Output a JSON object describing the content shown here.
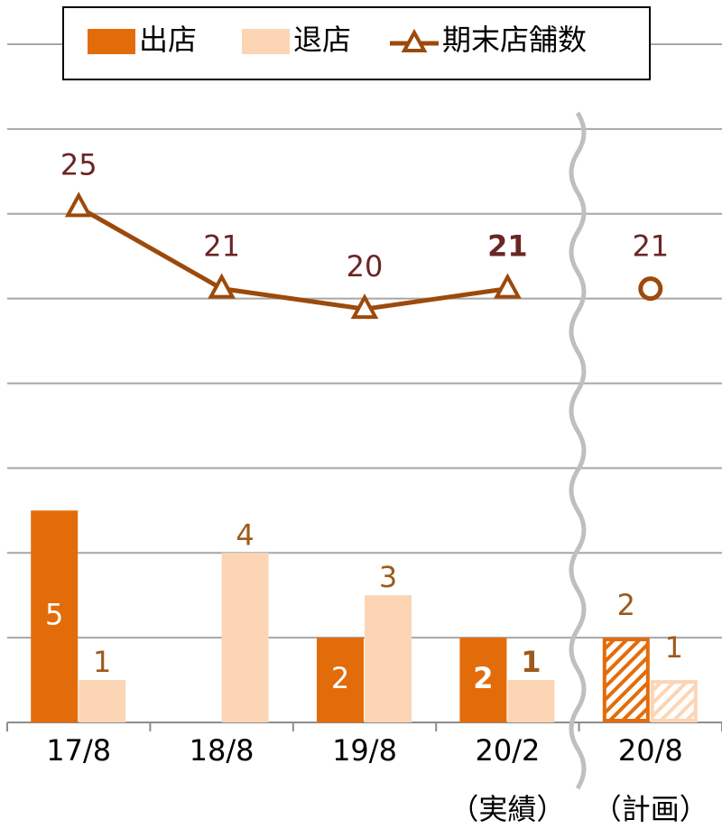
{
  "chart_data": {
    "type": "bar",
    "categories": [
      "17/8",
      "18/8",
      "19/8",
      "20/2",
      "20/8"
    ],
    "category_notes": [
      null,
      null,
      null,
      "（実績）",
      "（計画）"
    ],
    "series": [
      {
        "name": "出店",
        "color": "#e36c0a",
        "values": [
          5,
          null,
          2,
          2,
          2
        ]
      },
      {
        "name": "退店",
        "color": "#fcd5b5",
        "values": [
          1,
          4,
          3,
          1,
          1
        ]
      },
      {
        "name": "期末店舗数",
        "color": "#9c4a0c",
        "values": [
          25,
          21,
          20,
          21,
          21
        ],
        "axis": "y2",
        "type": "line"
      }
    ],
    "ylim": [
      0,
      16
    ],
    "yticks": [
      0,
      2,
      4,
      6,
      8,
      10,
      12,
      14,
      16
    ],
    "y2lim": [
      -0.3,
      33
    ],
    "grid": true
  }
}
